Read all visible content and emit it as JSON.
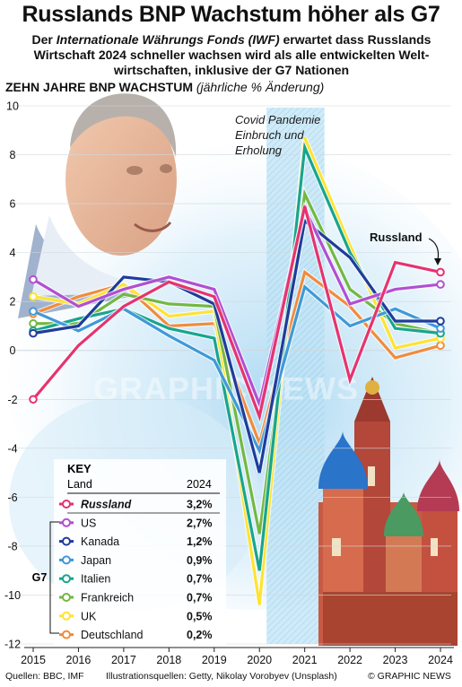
{
  "header": {
    "title": "Russlands BNP Wachstum höher als G7",
    "subtitle_pre": "Der ",
    "subtitle_em": "Internationale Währungs Fonds (IWF)",
    "subtitle_line1_post": " erwartet dass Russlands",
    "subtitle_line2": "Wirtschaft 2024 schneller wachsen wird als alle entwickelten Welt-",
    "subtitle_line3": "wirtschaften, inklusive der G7 Nationen",
    "axis_title": "ZEHN JAHRE BNP WACHSTUM",
    "axis_unit": "(jährliche % Änderung)"
  },
  "annotations": {
    "covid": [
      "Covid Pandemie",
      "Einbruch und",
      "Erholung"
    ],
    "russland": "Russland"
  },
  "key": {
    "title": "KEY",
    "col_country": "Land",
    "col_year": "2024",
    "group_label": "G7"
  },
  "footer": {
    "sources": "Quellen: BBC, IMF",
    "illustration": "Illustrationsquellen: Getty, Nikolay Vorobyev (Unsplash)",
    "credit": "© GRAPHIC NEWS"
  },
  "watermark": "GRAPHIC NEWS",
  "chart_data": {
    "type": "line",
    "x": [
      2015,
      2016,
      2017,
      2018,
      2019,
      2020,
      2021,
      2022,
      2023,
      2024
    ],
    "ylim": [
      -12,
      10
    ],
    "yticks": [
      10,
      8,
      6,
      4,
      2,
      0,
      -2,
      -4,
      -6,
      -8,
      -10,
      -12
    ],
    "yticklabels": [
      "10",
      "8",
      "6",
      "4",
      "2",
      "0",
      "-2",
      "-4",
      "-6",
      "-8",
      "-10",
      "-12"
    ],
    "highlight_range": [
      2020,
      2021
    ],
    "series": [
      {
        "name": "Russland",
        "label_2024": "3,2%",
        "color": "#e6336f",
        "values": [
          -2.0,
          0.2,
          1.8,
          2.8,
          2.2,
          -2.7,
          5.9,
          -1.2,
          3.6,
          3.2
        ]
      },
      {
        "name": "US",
        "label_2024": "2,7%",
        "color": "#b24fd1",
        "values": [
          2.9,
          1.8,
          2.5,
          3.0,
          2.5,
          -2.2,
          5.8,
          1.9,
          2.5,
          2.7
        ]
      },
      {
        "name": "Kanada",
        "label_2024": "1,2%",
        "color": "#1f3c9c",
        "values": [
          0.7,
          1.0,
          3.0,
          2.8,
          1.9,
          -5.0,
          5.3,
          3.8,
          1.2,
          1.2
        ]
      },
      {
        "name": "Japan",
        "label_2024": "0,9%",
        "color": "#3f99d8",
        "values": [
          1.6,
          0.8,
          1.7,
          0.6,
          -0.4,
          -4.1,
          2.6,
          1.0,
          1.7,
          0.9
        ]
      },
      {
        "name": "Italien",
        "label_2024": "0,7%",
        "color": "#18a58e",
        "values": [
          0.8,
          1.3,
          1.7,
          0.9,
          0.5,
          -9.0,
          8.3,
          4.0,
          0.9,
          0.7
        ]
      },
      {
        "name": "Frankreich",
        "label_2024": "0,7%",
        "color": "#73b843",
        "values": [
          1.1,
          1.1,
          2.3,
          1.9,
          1.8,
          -7.5,
          6.4,
          2.5,
          1.1,
          0.7
        ]
      },
      {
        "name": "UK",
        "label_2024": "0,5%",
        "color": "#ffe330",
        "values": [
          2.2,
          1.9,
          2.7,
          1.4,
          1.6,
          -10.4,
          8.7,
          4.3,
          0.1,
          0.5
        ]
      },
      {
        "name": "Deutschland",
        "label_2024": "0,2%",
        "color": "#f08c3c",
        "values": [
          1.5,
          2.2,
          2.7,
          1.0,
          1.1,
          -3.8,
          3.2,
          1.8,
          -0.3,
          0.2
        ]
      }
    ]
  }
}
